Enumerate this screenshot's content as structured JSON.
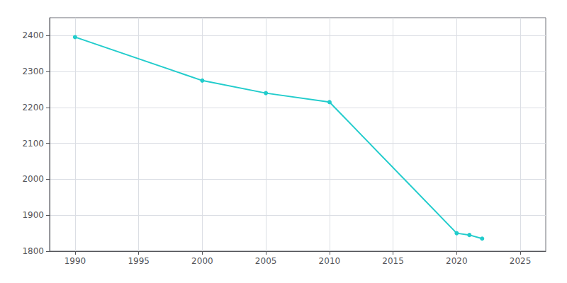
{
  "chart_data": {
    "type": "line",
    "x": [
      1990,
      2000,
      2005,
      2010,
      2020,
      2021,
      2022
    ],
    "values": [
      2396,
      2275,
      2240,
      2215,
      1850,
      1845,
      1835
    ],
    "color": "#22CCCC",
    "marker": "circle",
    "xlim": [
      1988,
      2027
    ],
    "xticks": [
      1990,
      1995,
      2000,
      2005,
      2010,
      2015,
      2020,
      2025
    ],
    "ylim": [
      1800,
      2450
    ],
    "yticks": [
      1800,
      1900,
      2000,
      2100,
      2200,
      2300,
      2400
    ],
    "grid": true
  }
}
